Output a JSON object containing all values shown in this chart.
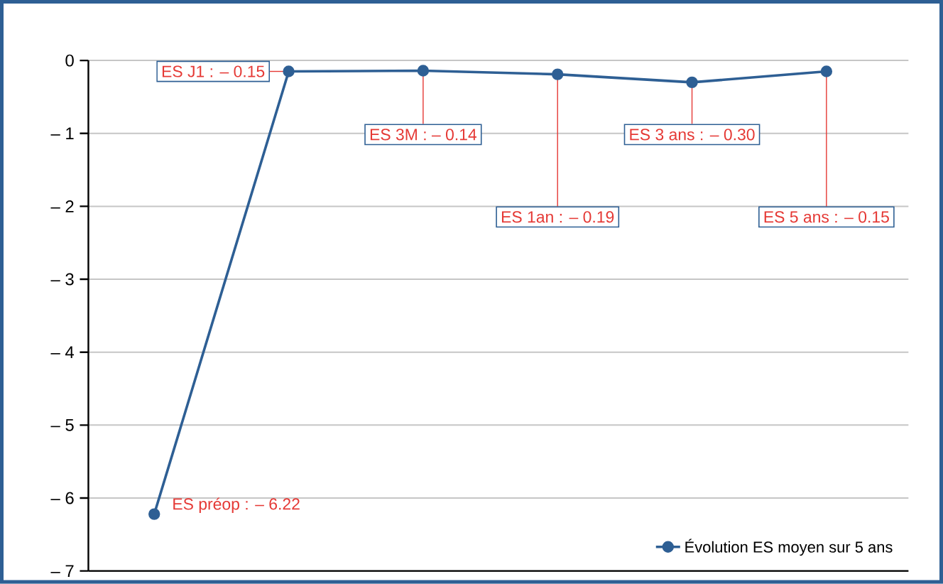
{
  "chart_data": {
    "type": "line",
    "categories": [
      null,
      null,
      null,
      null,
      null,
      null
    ],
    "series": [
      {
        "name": "Évolution ES moyen sur 5 ans",
        "color": "#2e5f94",
        "values": [
          -6.22,
          -0.15,
          -0.14,
          -0.19,
          -0.3,
          -0.15
        ],
        "value_labels": [
          "ES préop : – 6.22",
          "ES J1 : – 0.15",
          "ES 3M : – 0.14",
          "ES 1an : – 0.19",
          "ES 3 ans : – 0.30",
          "ES 5 ans : – 0.15"
        ]
      }
    ],
    "ylim": [
      -7,
      0
    ],
    "yticks": [
      0,
      {
        "value": -1,
        "label": "– 1"
      },
      {
        "value": -2,
        "label": "– 2"
      },
      {
        "value": -3,
        "label": "– 3"
      },
      {
        "value": -4,
        "label": "– 4"
      },
      {
        "value": -5,
        "label": "– 5"
      },
      {
        "value": -6,
        "label": "– 6"
      },
      {
        "value": -7,
        "label": "– 7"
      }
    ],
    "grid": "y",
    "legend": "bottom right",
    "marker": "circle",
    "line_style": "solid",
    "tick_labels": "y"
  }
}
